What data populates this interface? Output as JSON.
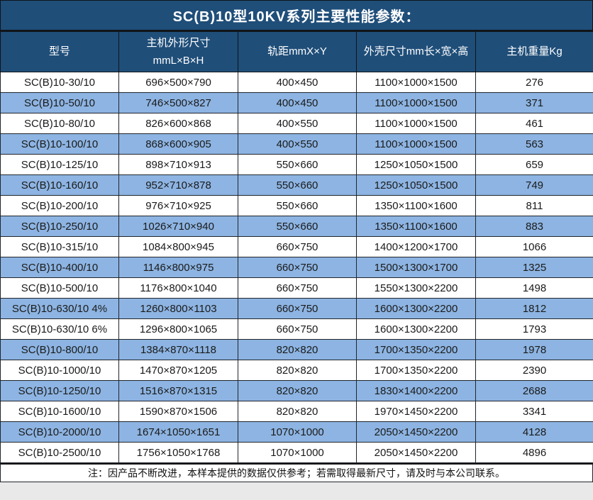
{
  "title": "SC(B)10型10KV系列主要性能参数：",
  "colors": {
    "header_bg": "#1F4E79",
    "row_alt_bg": "#8DB4E2",
    "row_bg": "#FFFFFF",
    "header_text": "#FFFFFF",
    "body_text": "#1A1A1A",
    "border": "#20252B"
  },
  "table": {
    "headers": [
      "型号",
      "主机外形尺寸\nmmL×B×H",
      "轨距mmX×Y",
      "外壳尺寸mm长×宽×高",
      "主机重量Kg"
    ],
    "rows": [
      [
        "SC(B)10-30/10",
        "696×500×790",
        "400×450",
        "1100×1000×1500",
        "276"
      ],
      [
        "SC(B)10-50/10",
        "746×500×827",
        "400×450",
        "1100×1000×1500",
        "371"
      ],
      [
        "SC(B)10-80/10",
        "826×600×868",
        "400×550",
        "1100×1000×1500",
        "461"
      ],
      [
        "SC(B)10-100/10",
        "868×600×905",
        "400×550",
        "1100×1000×1500",
        "563"
      ],
      [
        "SC(B)10-125/10",
        "898×710×913",
        "550×660",
        "1250×1050×1500",
        "659"
      ],
      [
        "SC(B)10-160/10",
        "952×710×878",
        "550×660",
        "1250×1050×1500",
        "749"
      ],
      [
        "SC(B)10-200/10",
        "976×710×925",
        "550×660",
        "1350×1100×1600",
        "811"
      ],
      [
        "SC(B)10-250/10",
        "1026×710×940",
        "550×660",
        "1350×1100×1600",
        "883"
      ],
      [
        "SC(B)10-315/10",
        "1084×800×945",
        "660×750",
        "1400×1200×1700",
        "1066"
      ],
      [
        "SC(B)10-400/10",
        "1146×800×975",
        "660×750",
        "1500×1300×1700",
        "1325"
      ],
      [
        "SC(B)10-500/10",
        "1176×800×1040",
        "660×750",
        "1550×1300×2200",
        "1498"
      ],
      [
        "SC(B)10-630/10 4%",
        "1260×800×1103",
        "660×750",
        "1600×1300×2200",
        "1812"
      ],
      [
        "SC(B)10-630/10 6%",
        "1296×800×1065",
        "660×750",
        "1600×1300×2200",
        "1793"
      ],
      [
        "SC(B)10-800/10",
        "1384×870×1118",
        "820×820",
        "1700×1350×2200",
        "1978"
      ],
      [
        "SC(B)10-1000/10",
        "1470×870×1205",
        "820×820",
        "1700×1350×2200",
        "2390"
      ],
      [
        "SC(B)10-1250/10",
        "1516×870×1315",
        "820×820",
        "1830×1400×2200",
        "2688"
      ],
      [
        "SC(B)10-1600/10",
        "1590×870×1506",
        "820×820",
        "1970×1450×2200",
        "3341"
      ],
      [
        "SC(B)10-2000/10",
        "1674×1050×1651",
        "1070×1000",
        "2050×1450×2200",
        "4128"
      ],
      [
        "SC(B)10-2500/10",
        "1756×1050×1768",
        "1070×1000",
        "2050×1450×2200",
        "4896"
      ]
    ],
    "cell_names": [
      "cell-model",
      "cell-main-dimensions",
      "cell-rail-gauge",
      "cell-shell-dimensions",
      "cell-weight"
    ]
  },
  "footer": {
    "note": "注：因产品不断改进，本样本提供的数据仅供参考；若需取得最新尺寸，请及时与本公司联系。"
  }
}
